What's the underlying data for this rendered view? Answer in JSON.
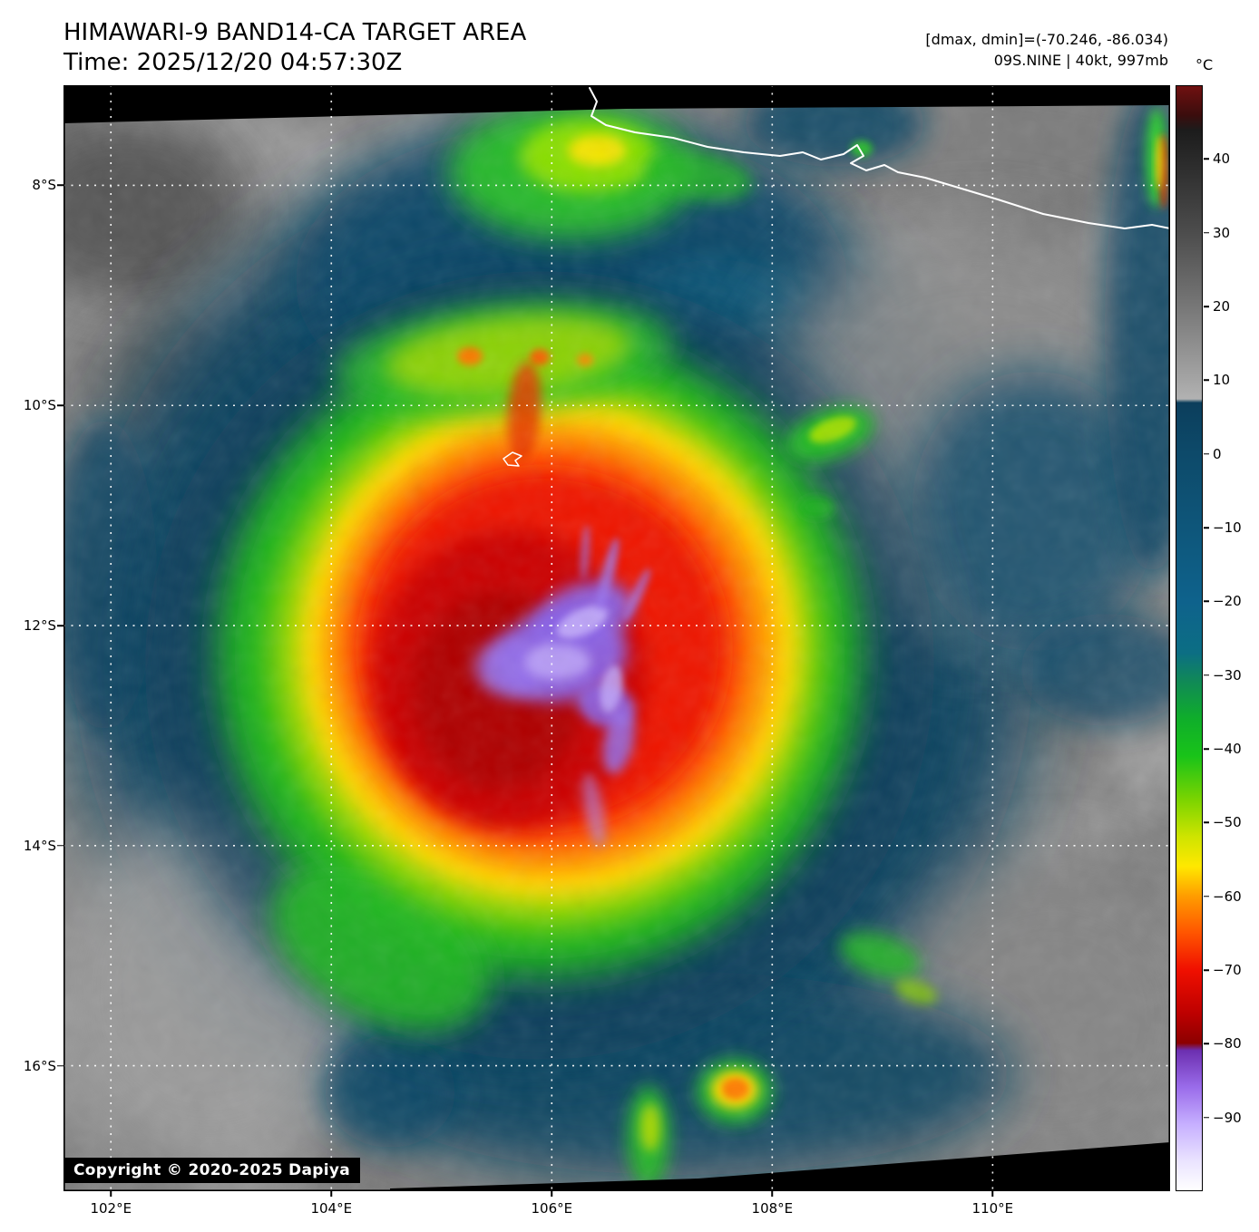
{
  "header": {
    "title": "HIMAWARI-9 BAND14-CA TARGET AREA",
    "time": "Time: 2025/12/20 04:57:30Z",
    "range_line": "[dmax, dmin]=(-70.246, -86.034)",
    "storm_line": "09S.NINE | 40kt, 997mb"
  },
  "map": {
    "copyright": "Copyright © 2020-2025 Dapiya",
    "lon_range": [
      101.57,
      111.61
    ],
    "lat_range": [
      7.09,
      17.14
    ],
    "grid": {
      "lon": [
        {
          "deg": 102,
          "label": "102°E"
        },
        {
          "deg": 104,
          "label": "104°E"
        },
        {
          "deg": 106,
          "label": "106°E"
        },
        {
          "deg": 108,
          "label": "108°E"
        },
        {
          "deg": 110,
          "label": "110°E"
        }
      ],
      "lat": [
        {
          "deg": 8,
          "label": "8°S"
        },
        {
          "deg": 10,
          "label": "10°S"
        },
        {
          "deg": 12,
          "label": "12°S"
        },
        {
          "deg": 14,
          "label": "14°S"
        },
        {
          "deg": 16,
          "label": "16°S"
        }
      ]
    }
  },
  "colorbar": {
    "unit": "°C",
    "domain": [
      50,
      -100
    ],
    "ticks": [
      {
        "v": 40,
        "label": "40"
      },
      {
        "v": 30,
        "label": "30"
      },
      {
        "v": 20,
        "label": "20"
      },
      {
        "v": 10,
        "label": "10"
      },
      {
        "v": 0,
        "label": "0"
      },
      {
        "v": -10,
        "label": "−10"
      },
      {
        "v": -20,
        "label": "−20"
      },
      {
        "v": -30,
        "label": "−30"
      },
      {
        "v": -40,
        "label": "−40"
      },
      {
        "v": -50,
        "label": "−50"
      },
      {
        "v": -60,
        "label": "−60"
      },
      {
        "v": -70,
        "label": "−70"
      },
      {
        "v": -80,
        "label": "−80"
      },
      {
        "v": -90,
        "label": "−90"
      }
    ],
    "palette": [
      {
        "v": 50,
        "c": "#701010"
      },
      {
        "v": 46,
        "c": "#3a0d0d"
      },
      {
        "v": 44,
        "c": "#1c1c1c"
      },
      {
        "v": 40,
        "c": "#2a2a2a"
      },
      {
        "v": 30,
        "c": "#4d4d4d"
      },
      {
        "v": 20,
        "c": "#777777"
      },
      {
        "v": 10,
        "c": "#a5a5a5"
      },
      {
        "v": 7.5,
        "c": "#b2b2b2"
      },
      {
        "v": 7,
        "c": "#0c3e5c"
      },
      {
        "v": 0,
        "c": "#0d4a6a"
      },
      {
        "v": -10,
        "c": "#0e567a"
      },
      {
        "v": -20,
        "c": "#0e628c"
      },
      {
        "v": -27,
        "c": "#0c6e84"
      },
      {
        "v": -31,
        "c": "#108a55"
      },
      {
        "v": -36,
        "c": "#0fae2a"
      },
      {
        "v": -41,
        "c": "#19c319"
      },
      {
        "v": -47,
        "c": "#7cd400"
      },
      {
        "v": -52,
        "c": "#cfe400"
      },
      {
        "v": -56,
        "c": "#ffe800"
      },
      {
        "v": -60,
        "c": "#ff9d00"
      },
      {
        "v": -65,
        "c": "#ff5500"
      },
      {
        "v": -70,
        "c": "#f01000"
      },
      {
        "v": -76,
        "c": "#bd0000"
      },
      {
        "v": -80,
        "c": "#8c0000"
      },
      {
        "v": -81,
        "c": "#6c2fb0"
      },
      {
        "v": -86,
        "c": "#9a6cea"
      },
      {
        "v": -91,
        "c": "#c6afff"
      },
      {
        "v": -96,
        "c": "#eae3ff"
      },
      {
        "v": -100,
        "c": "#ffffff"
      }
    ]
  }
}
